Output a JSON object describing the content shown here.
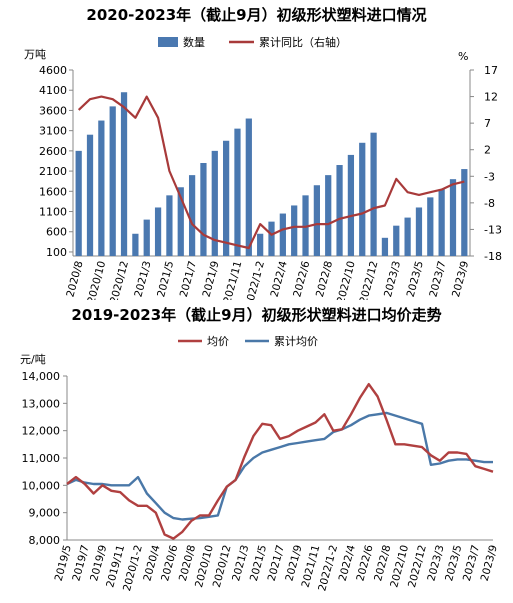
{
  "chart_data": [
    {
      "type": "bar+line",
      "title": "2020-2023年（截止9月）初级形状塑料进口情况",
      "y_left_unit": "万吨",
      "y_right_unit": "%",
      "ylim_left": [
        0,
        4600
      ],
      "yticks_left": [
        100,
        600,
        1100,
        1600,
        2100,
        2600,
        3100,
        3600,
        4100,
        4600
      ],
      "ylim_right": [
        -18,
        17
      ],
      "yticks_right": [
        -18,
        -13,
        -8,
        -3,
        2,
        7,
        12,
        17
      ],
      "x_tick_labels": [
        "2020/8",
        "2020/10",
        "2020/12",
        "2021/3",
        "2021/5",
        "2021/7",
        "2021/9",
        "2021/11",
        "2022/1-2",
        "2022/4",
        "2022/6",
        "2022/8",
        "2022/10",
        "2022/12",
        "2023/3",
        "2023/5",
        "2023/7",
        "2023/9"
      ],
      "categories": [
        "2020/8",
        "2020/9",
        "2020/10",
        "2020/11",
        "2020/12",
        "2021/1-2",
        "2021/3",
        "2021/4",
        "2021/5",
        "2021/6",
        "2021/7",
        "2021/8",
        "2021/9",
        "2021/10",
        "2021/11",
        "2021/12",
        "2022/1-2",
        "2022/3",
        "2022/4",
        "2022/5",
        "2022/6",
        "2022/7",
        "2022/8",
        "2022/9",
        "2022/10",
        "2022/11",
        "2022/12",
        "2023/1-2",
        "2023/3",
        "2023/4",
        "2023/5",
        "2023/6",
        "2023/7",
        "2023/8",
        "2023/9"
      ],
      "series": [
        {
          "name": "数量",
          "kind": "bar",
          "color": "#4a78b0",
          "values": [
            2600,
            3000,
            3350,
            3700,
            4050,
            550,
            900,
            1200,
            1500,
            1700,
            2000,
            2300,
            2600,
            2850,
            3150,
            3400,
            550,
            850,
            1050,
            1250,
            1500,
            1750,
            2000,
            2250,
            2500,
            2800,
            3050,
            450,
            750,
            950,
            1200,
            1450,
            1650,
            1900,
            2150
          ]
        },
        {
          "name": "累计同比（右轴）",
          "kind": "line",
          "axis": "right",
          "color": "#a83a3a",
          "values": [
            9.5,
            11.5,
            12,
            11.5,
            10,
            8,
            12,
            8,
            -2,
            -7,
            -12,
            -14,
            -15,
            -15.5,
            -16,
            -16.5,
            -12,
            -14,
            -13,
            -12.5,
            -12.5,
            -12,
            -12,
            -11,
            -10.5,
            -10,
            -9,
            -8.5,
            -3.5,
            -6,
            -6.5,
            -6,
            -5.5,
            -4.5,
            -4
          ]
        }
      ],
      "legend": "top-center",
      "grid": false
    },
    {
      "type": "line",
      "title": "2019-2023年（截止9月）初级形状塑料进口均价走势",
      "y_unit": "元/吨",
      "ylim": [
        8000,
        14000
      ],
      "yticks": [
        "8,000",
        "9,000",
        "10,000",
        "11,000",
        "12,000",
        "13,000",
        "14,000"
      ],
      "x_tick_labels": [
        "2019/5",
        "2019/7",
        "2019/9",
        "2019/11",
        "2020/1-2",
        "2020/4",
        "2020/6",
        "2020/8",
        "2020/10",
        "2020/12",
        "2021/3",
        "2021/5",
        "2021/7",
        "2021/9",
        "2021/11",
        "2022/1-2",
        "2022/4",
        "2022/6",
        "2022/8",
        "2022/10",
        "2022/12",
        "2023/3",
        "2023/5",
        "2023/7",
        "2023/9"
      ],
      "categories": [
        "2019/5",
        "2019/6",
        "2019/7",
        "2019/8",
        "2019/9",
        "2019/10",
        "2019/11",
        "2019/12",
        "2020/1-2",
        "2020/3",
        "2020/4",
        "2020/5",
        "2020/6",
        "2020/7",
        "2020/8",
        "2020/9",
        "2020/10",
        "2020/11",
        "2020/12",
        "2021/1-2",
        "2021/3",
        "2021/4",
        "2021/5",
        "2021/6",
        "2021/7",
        "2021/8",
        "2021/9",
        "2021/10",
        "2021/11",
        "2021/12",
        "2022/1-2",
        "2022/3",
        "2022/4",
        "2022/5",
        "2022/6",
        "2022/7",
        "2022/8",
        "2022/9",
        "2022/10",
        "2022/11",
        "2022/12",
        "2023/1-2",
        "2023/3",
        "2023/4",
        "2023/5",
        "2023/6",
        "2023/7",
        "2023/8",
        "2023/9"
      ],
      "series": [
        {
          "name": "均价",
          "color": "#b04040",
          "values": [
            10050,
            10300,
            10050,
            9700,
            10000,
            9800,
            9750,
            9450,
            9250,
            9250,
            9000,
            8200,
            8050,
            8300,
            8700,
            8900,
            8900,
            9450,
            9950,
            10200,
            11050,
            11800,
            12250,
            12200,
            11700,
            11800,
            12000,
            12150,
            12300,
            12600,
            12000,
            12050,
            12600,
            13200,
            13700,
            13250,
            12400,
            11500,
            11500,
            11450,
            11400,
            11100,
            10900,
            11200,
            11200,
            11150,
            10700,
            10600,
            10500
          ]
        },
        {
          "name": "累计均价",
          "color": "#4a78a8",
          "values": [
            10050,
            10200,
            10100,
            10050,
            10050,
            10000,
            10000,
            10000,
            10300,
            9700,
            9350,
            9000,
            8800,
            8750,
            8780,
            8800,
            8850,
            8900,
            9950,
            10200,
            10700,
            11000,
            11200,
            11300,
            11400,
            11500,
            11550,
            11600,
            11650,
            11700,
            11950,
            12050,
            12200,
            12400,
            12550,
            12600,
            12650,
            12550,
            12450,
            12350,
            12250,
            10750,
            10800,
            10900,
            10950,
            10950,
            10900,
            10850,
            10850
          ]
        }
      ],
      "legend": "top-center",
      "grid": false
    }
  ]
}
